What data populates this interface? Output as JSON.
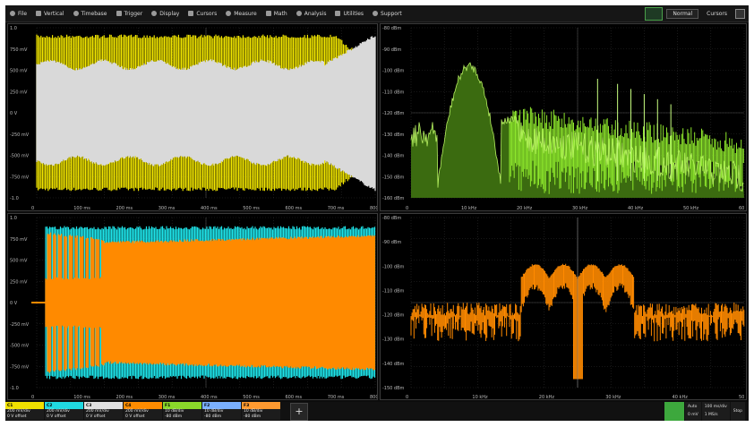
{
  "menubar": {
    "items": [
      {
        "label": "File",
        "icon": "file-icon"
      },
      {
        "label": "Vertical",
        "icon": "vertical-icon"
      },
      {
        "label": "Timebase",
        "icon": "timebase-icon"
      },
      {
        "label": "Trigger",
        "icon": "trigger-icon"
      },
      {
        "label": "Display",
        "icon": "display-icon"
      },
      {
        "label": "Cursors",
        "icon": "cursors-icon"
      },
      {
        "label": "Measure",
        "icon": "measure-icon"
      },
      {
        "label": "Math",
        "icon": "math-icon"
      },
      {
        "label": "Analysis",
        "icon": "analysis-icon"
      },
      {
        "label": "Utilities",
        "icon": "utilities-icon"
      },
      {
        "label": "Support",
        "icon": "support-icon"
      }
    ],
    "right_dropdown": "Normal",
    "right_label": "Cursors"
  },
  "panels": {
    "top_left": {
      "y_ticks": [
        "1.0",
        "750 mV",
        "500 mV",
        "250 mV",
        "0 V",
        "-250 mV",
        "-500 mV",
        "-750 mV",
        "-1.0"
      ],
      "x_ticks": [
        "0",
        "100 ms",
        "200 ms",
        "300 ms",
        "400 ms",
        "500 ms",
        "600 ms",
        "700 ms",
        "800 ms"
      ]
    },
    "top_right": {
      "y_ticks": [
        "-80 dBm",
        "-90 dBm",
        "-100 dBm",
        "-110 dBm",
        "-120 dBm",
        "-130 dBm",
        "-140 dBm",
        "-150 dBm",
        "-160 dBm"
      ],
      "x_ticks": [
        "0",
        "10 kHz",
        "20 kHz",
        "30 kHz",
        "40 kHz",
        "50 kHz",
        "60 kHz"
      ]
    },
    "bottom_left": {
      "y_ticks": [
        "1.0",
        "750 mV",
        "500 mV",
        "250 mV",
        "0 V",
        "-250 mV",
        "-500 mV",
        "-750 mV",
        "-1.0"
      ],
      "x_ticks": [
        "0",
        "100 ms",
        "200 ms",
        "300 ms",
        "400 ms",
        "500 ms",
        "600 ms",
        "700 ms",
        "800 ms"
      ]
    },
    "bottom_right": {
      "y_ticks": [
        "-80 dBm",
        "-90 dBm",
        "-100 dBm",
        "-110 dBm",
        "-120 dBm",
        "-130 dBm",
        "-140 dBm",
        "-150 dBm"
      ],
      "x_ticks": [
        "0",
        "10 kHz",
        "20 kHz",
        "30 kHz",
        "40 kHz",
        "50 kHz"
      ]
    }
  },
  "channels": [
    {
      "name": "C1",
      "color": "#f0e000",
      "l1": "200 mV/div",
      "l2": "0 V offset"
    },
    {
      "name": "C2",
      "color": "#20d8e0",
      "l1": "200 mV/div",
      "l2": "0 V offset"
    },
    {
      "name": "C3",
      "color": "#e0e0e0",
      "l1": "200 mV/div",
      "l2": "0 V offset"
    },
    {
      "name": "C4",
      "color": "#ff8c00",
      "l1": "200 mV/div",
      "l2": "0 V offset"
    },
    {
      "name": "F1",
      "color": "#8ad82a",
      "l1": "10 dB/div",
      "l2": "-80 dBm"
    },
    {
      "name": "F2",
      "color": "#7ab0ff",
      "l1": "10 dB/div",
      "l2": "-80 dBm"
    },
    {
      "name": "F3",
      "color": "#ff9a30",
      "l1": "10 dB/div",
      "l2": "-80 dBm"
    }
  ],
  "add_button": "+",
  "trigger": {
    "mode": "Auto",
    "timebase": "100 ms/div",
    "rate": "1 MS/s",
    "state": "Stop",
    "level": "0 mV"
  },
  "colors": {
    "ch1_yellow": "#f2e600",
    "ch3_gray": "#d9d9d9",
    "spectrum_green": "#8ee82c",
    "ch2_cyan": "#1ee3e8",
    "ch4_orange": "#ff8a00"
  }
}
